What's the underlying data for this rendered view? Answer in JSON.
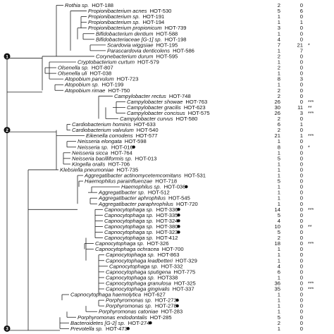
{
  "figure": {
    "rows": [
      {
        "name": "Rothia sp.",
        "hot": "HOT-188",
        "c1": "2",
        "c2": "0",
        "sig": "",
        "dot": false
      },
      {
        "name": "Propionibacterium acnes",
        "hot": "HOT-530",
        "c1": "5",
        "c2": "6",
        "sig": "",
        "dot": false
      },
      {
        "name": "Propionibacterium sp.",
        "hot": "HOT-191",
        "c1": "1",
        "c2": "0",
        "sig": "",
        "dot": false
      },
      {
        "name": "Propionibacterium sp.",
        "hot": "HOT-194",
        "c1": "1",
        "c2": "1",
        "sig": "",
        "dot": false
      },
      {
        "name": "Propionibacterium propionicum",
        "hot": "HOT-739",
        "c1": "3",
        "c2": "0",
        "sig": "",
        "dot": false
      },
      {
        "name": "Bifidobacterium dentium",
        "hot": "HOT-588",
        "c1": "1",
        "c2": "0",
        "sig": "",
        "dot": false
      },
      {
        "name": "Bifidobacteriaceae [G-1] sp.",
        "hot": "HOT-198",
        "c1": "4",
        "c2": "0",
        "sig": "",
        "dot": false
      },
      {
        "name": "Scardovia wiggsiae",
        "hot": "HOT-195",
        "c1": "7",
        "c2": "21",
        "sig": "*",
        "dot": false
      },
      {
        "name": "Parascardovia denticolens",
        "hot": "HOT-586",
        "c1": "1",
        "c2": "7",
        "sig": "",
        "dot": false
      },
      {
        "name": "Corynebacterium durum",
        "hot": "HOT-595",
        "c1": "2",
        "c2": "0",
        "sig": "",
        "dot": false
      },
      {
        "name": "Cryptobacterium curtum",
        "hot": "HOT-579",
        "c1": "1",
        "c2": "0",
        "sig": "",
        "dot": false
      },
      {
        "name": "Olsenella sp.",
        "hot": "HOT-807",
        "c1": "2",
        "c2": "0",
        "sig": "",
        "dot": false
      },
      {
        "name": "Olsenella uli",
        "hot": "HOT-038",
        "c1": "1",
        "c2": "0",
        "sig": "",
        "dot": false
      },
      {
        "name": "Atopobium parvulum",
        "hot": "HOT-723",
        "c1": "8",
        "c2": "3",
        "sig": "",
        "dot": false
      },
      {
        "name": "Atopobium sp.",
        "hot": "HOT-199",
        "c1": "1",
        "c2": "0",
        "sig": "",
        "dot": false
      },
      {
        "name": "Atopobium rimae",
        "hot": "HOT-750",
        "c1": "2",
        "c2": "0",
        "sig": "",
        "dot": false
      },
      {
        "name": "Campylobacter rectus",
        "hot": "HOT-748",
        "c1": "2",
        "c2": "0",
        "sig": "",
        "dot": false
      },
      {
        "name": "Campylobacter showae",
        "hot": "HOT-763",
        "c1": "26",
        "c2": "0",
        "sig": "***",
        "dot": false
      },
      {
        "name": "Campylobacter gracilis",
        "hot": "HOT-623",
        "c1": "30",
        "c2": "11",
        "sig": "**",
        "dot": false
      },
      {
        "name": "Campylobacter concisus",
        "hot": "HOT-575",
        "c1": "26",
        "c2": "3",
        "sig": "***",
        "dot": false
      },
      {
        "name": "Campylobacter curvus",
        "hot": "HOT-580",
        "c1": "2",
        "c2": "0",
        "sig": "",
        "dot": false
      },
      {
        "name": "Cardiobacterium hominis",
        "hot": "HOT-633",
        "c1": "6",
        "c2": "1",
        "sig": "",
        "dot": false
      },
      {
        "name": "Cardiobacterium valvulum",
        "hot": "HOT-540",
        "c1": "2",
        "c2": "0",
        "sig": "",
        "dot": false
      },
      {
        "name": "Eikenella corrodens",
        "hot": "HOT-577",
        "c1": "21",
        "c2": "1",
        "sig": "***",
        "dot": false
      },
      {
        "name": "Neisseria elongata",
        "hot": "HOT-598",
        "c1": "1",
        "c2": "0",
        "sig": "",
        "dot": false
      },
      {
        "name": "Neisseria sp.",
        "hot": "HOT-016",
        "c1": "8",
        "c2": "0",
        "sig": "*",
        "dot": true
      },
      {
        "name": "Neisseria sicca",
        "hot": "HOT-764",
        "c1": "1",
        "c2": "0",
        "sig": "",
        "dot": false
      },
      {
        "name": "Neisseria bacilliformis sp.",
        "hot": "HOT-013",
        "c1": "5",
        "c2": "0",
        "sig": "",
        "dot": false
      },
      {
        "name": "Kingella oralis",
        "hot": "HOT-706",
        "c1": "1",
        "c2": "0",
        "sig": "",
        "dot": false
      },
      {
        "name": "Klebsiella pneumoniae",
        "hot": "HOT-735",
        "c1": "1",
        "c2": "0",
        "sig": "",
        "dot": false
      },
      {
        "name": "Aggregatibacter actinomycetemcomitans",
        "hot": "HOT-531",
        "c1": "1",
        "c2": "0",
        "sig": "",
        "dot": false
      },
      {
        "name": "Haemophilus parainfluenzae",
        "hot": "HOT-718",
        "c1": "5",
        "c2": "0",
        "sig": "",
        "dot": false
      },
      {
        "name": "Haemophilus sp.",
        "hot": "HOT-036",
        "c1": "1",
        "c2": "0",
        "sig": "",
        "dot": true
      },
      {
        "name": "Aggregatibacter sp.",
        "hot": "HOT-512",
        "c1": "1",
        "c2": "0",
        "sig": "",
        "dot": false
      },
      {
        "name": "Aggregatibacter aphrophilus",
        "hot": "HOT-545",
        "c1": "1",
        "c2": "0",
        "sig": "",
        "dot": false
      },
      {
        "name": "Aggregatibacter paraphrophilus",
        "hot": "HOT-720",
        "c1": "1",
        "c2": "0",
        "sig": "",
        "dot": false
      },
      {
        "name": "Capnocytophaga sp.",
        "hot": "HOT-336",
        "c1": "14",
        "c2": "0",
        "sig": "***",
        "dot": true
      },
      {
        "name": "Capnocytophaga sp.",
        "hot": "HOT-335",
        "c1": "5",
        "c2": "0",
        "sig": "",
        "dot": true
      },
      {
        "name": "Capnocytophaga sp.",
        "hot": "HOT-324",
        "c1": "4",
        "c2": "0",
        "sig": "",
        "dot": true
      },
      {
        "name": "Capnocytophaga sp.",
        "hot": "HOT-380",
        "c1": "10",
        "c2": "0",
        "sig": "**",
        "dot": true
      },
      {
        "name": "Capnocytophaga sp.",
        "hot": "HOT-323",
        "c1": "5",
        "c2": "0",
        "sig": "",
        "dot": true
      },
      {
        "name": "Capnocytophaga sp.",
        "hot": "HOT-412",
        "c1": "2",
        "c2": "0",
        "sig": "",
        "dot": false
      },
      {
        "name": "Capnocytophaga sp.",
        "hot": "HOT-326",
        "c1": "18",
        "c2": "0",
        "sig": "***",
        "dot": false
      },
      {
        "name": "Capnocytophaga ochracea",
        "hot": "HOT-700",
        "c1": "1",
        "c2": "0",
        "sig": "",
        "dot": false
      },
      {
        "name": "Capnocytophaga sp.",
        "hot": "HOT-863",
        "c1": "1",
        "c2": "0",
        "sig": "",
        "dot": false
      },
      {
        "name": "Capnocytophaga leadbetteri",
        "hot": "HOT-329",
        "c1": "1",
        "c2": "0",
        "sig": "",
        "dot": false
      },
      {
        "name": "Capnocytophaga sp.",
        "hot": "HOT-332",
        "c1": "4",
        "c2": "0",
        "sig": "",
        "dot": false
      },
      {
        "name": "Capnocytophaga sputigena",
        "hot": "HOT-775",
        "c1": "6",
        "c2": "0",
        "sig": "",
        "dot": false
      },
      {
        "name": "Capnocytophaga sp.",
        "hot": "HOT338",
        "c1": "1",
        "c2": "0",
        "sig": "",
        "dot": false
      },
      {
        "name": "Capnocytophaga granulosa",
        "hot": "HOT-325",
        "c1": "36",
        "c2": "0",
        "sig": "***",
        "dot": false
      },
      {
        "name": "Capnocytophaga gingivalis",
        "hot": "HOT-337",
        "c1": "35",
        "c2": "0",
        "sig": "***",
        "dot": false
      },
      {
        "name": "Capnocytophaga haemolytica",
        "hot": "HOT-627",
        "c1": "1",
        "c2": "0",
        "sig": "",
        "dot": false
      },
      {
        "name": "Porphyromonas sp.",
        "hot": "HOT-273",
        "c1": "1",
        "c2": "0",
        "sig": "",
        "dot": true
      },
      {
        "name": "Porphyromonas sp.",
        "hot": "HOT-278",
        "c1": "1",
        "c2": "0",
        "sig": "",
        "dot": true
      },
      {
        "name": "Porphyromonas catoniae",
        "hot": "HOT-283",
        "c1": "1",
        "c2": "0",
        "sig": "",
        "dot": false
      },
      {
        "name": "Porphyromonas endodontalis",
        "hot": "HOT-285",
        "c1": "5",
        "c2": "0",
        "sig": "",
        "dot": false
      },
      {
        "name": "Bacteroidetes [G-2] sp.",
        "hot": "HOT-274",
        "c1": "2",
        "c2": "0",
        "sig": "",
        "dot": true
      },
      {
        "name": "Prevotella sp.",
        "hot": "HOT-473",
        "c1": "1",
        "c2": "0",
        "sig": "",
        "dot": true
      }
    ],
    "node_markers": [
      {
        "label": "1",
        "row": 9
      },
      {
        "label": "2",
        "row": 22
      },
      {
        "label": "3",
        "row": 57
      }
    ],
    "colors": {
      "line": "#222222",
      "text": "#111111",
      "marker": "#111111"
    }
  }
}
